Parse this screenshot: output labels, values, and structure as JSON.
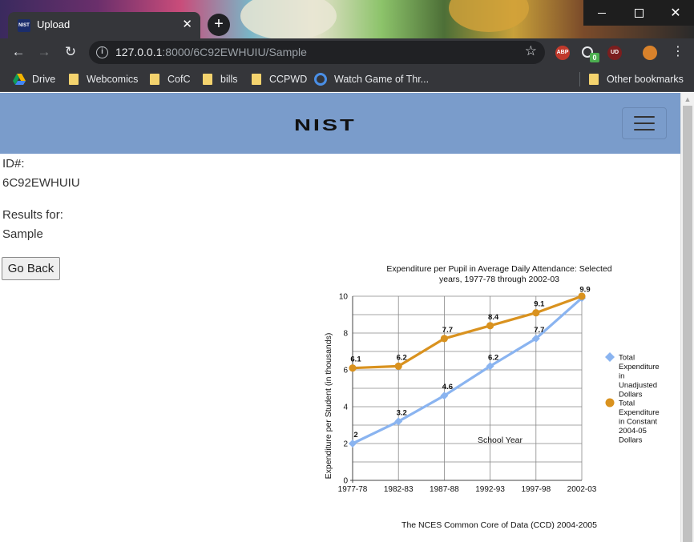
{
  "browser": {
    "tab_title": "Upload",
    "favicon_text": "NIST",
    "new_tab_label": "+",
    "url_host": "127.0.0.1",
    "url_rest": ":8000/6C92EWHUIU/Sample",
    "bookmarks": [
      "Drive",
      "Webcomics",
      "CofC",
      "bills",
      "CCPWD",
      "Watch Game of Thr...",
      "Other bookmarks"
    ],
    "extension_labels": [
      "ABP",
      "UD"
    ],
    "extension_badge": "0"
  },
  "page": {
    "logo": "NIST",
    "id_label": "ID#:",
    "id_value": "6C92EWHUIU",
    "results_label": "Results for:",
    "results_value": "Sample",
    "go_back_label": "Go Back"
  },
  "chart_data": {
    "type": "line",
    "title_line1": "Expenditure per Pupil in Average Daily Attendance: Selected",
    "title_line2": "years, 1977-78 through 2002-03",
    "xlabel": "School Year",
    "ylabel": "Expenditure per Student (in thousands)",
    "categories": [
      "1977-78",
      "1982-83",
      "1987-88",
      "1992-93",
      "1997-98",
      "2002-03"
    ],
    "ylim": [
      0,
      10
    ],
    "y_ticks": [
      "0",
      "2",
      "4",
      "6",
      "8",
      "10"
    ],
    "grid": true,
    "legend_position": "right",
    "source": "The NCES Common Core of Data (CCD) 2004-2005",
    "series": [
      {
        "name_lines": [
          "Total",
          "Expenditure",
          "in",
          "Unadjusted",
          "Dollars"
        ],
        "values": [
          2,
          3.2,
          4.6,
          6.2,
          7.7,
          9.9
        ],
        "labels": [
          "2",
          "3.2",
          "4.6",
          "6.2",
          "7.7",
          "9.9"
        ],
        "color": "#8ab4f0",
        "marker": "diamond"
      },
      {
        "name_lines": [
          "Total",
          "Expenditure",
          "in Constant",
          "2004-05",
          "Dollars"
        ],
        "values": [
          6.1,
          6.2,
          7.7,
          8.4,
          9.1,
          10.0
        ],
        "labels": [
          "6.1",
          "6.2",
          "7.7",
          "8.4",
          "9.1",
          ""
        ],
        "color": "#d9921f",
        "marker": "circle"
      }
    ]
  }
}
